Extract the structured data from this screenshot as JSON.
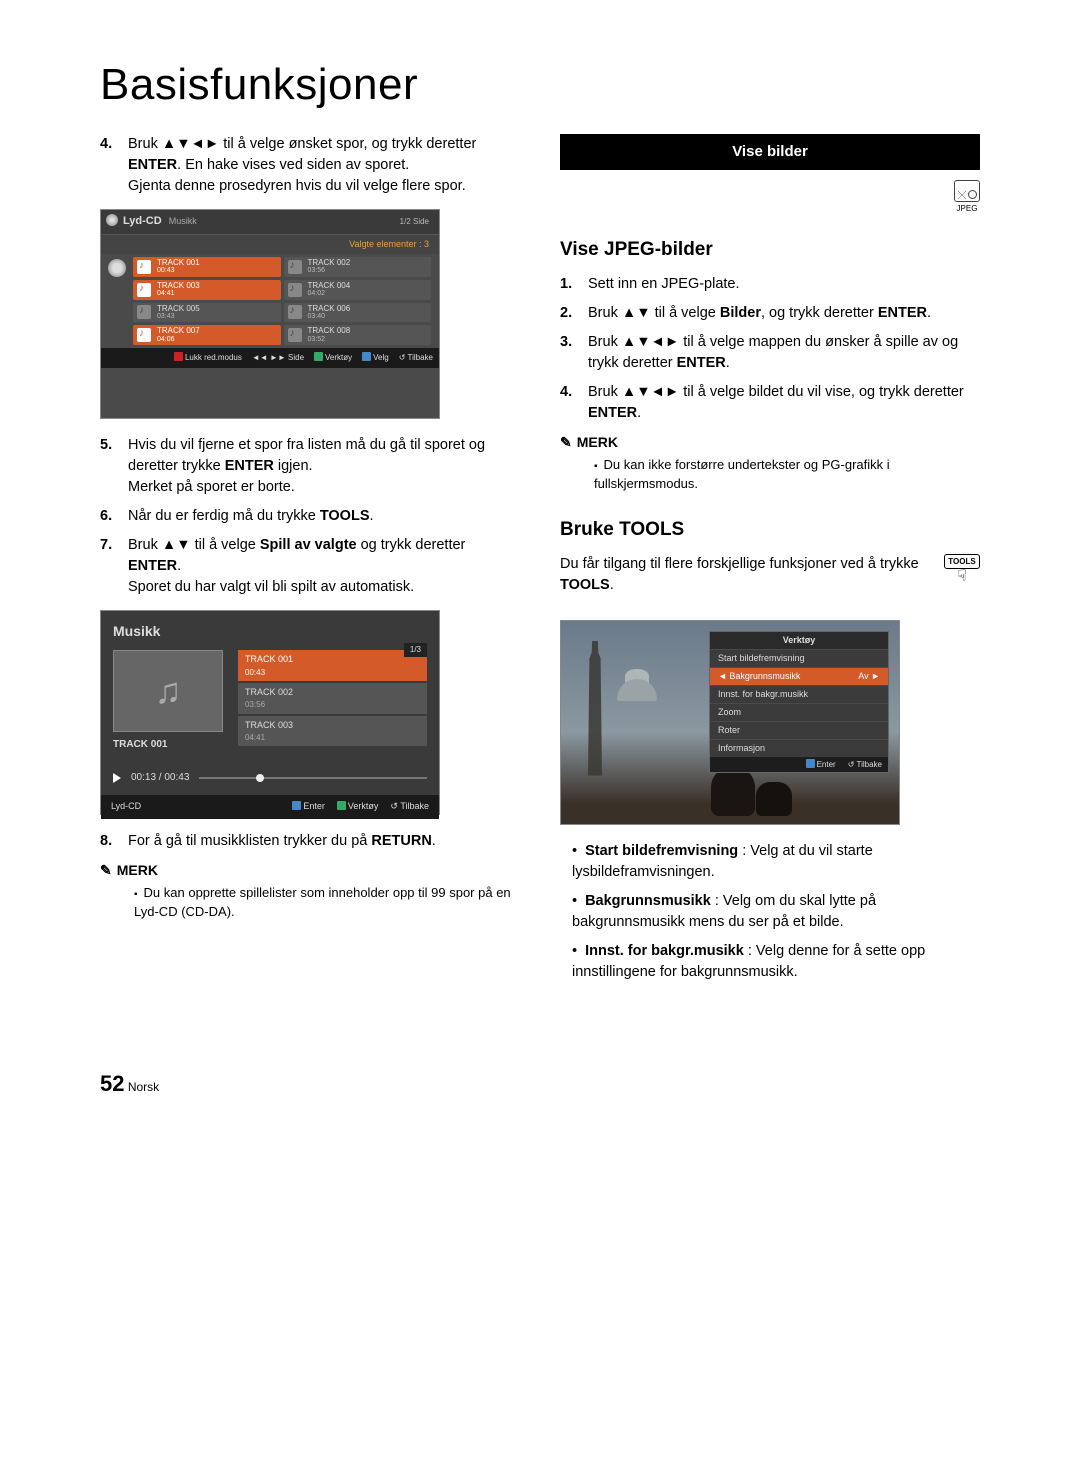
{
  "page": {
    "title": "Basisfunksjoner",
    "page_number": "52",
    "page_lang": "Norsk"
  },
  "left": {
    "step4_a": "Bruk ",
    "step4_arrows": "▲▼◄►",
    "step4_b": " til å velge ønsket spor, og trykk deretter ",
    "step4_enter": "ENTER",
    "step4_c": ". En hake vises ved siden av sporet.",
    "step4_d": "Gjenta denne prosedyren hvis du vil velge flere spor.",
    "step5_a": "Hvis du vil fjerne et spor fra listen må du gå til sporet og deretter trykke ",
    "step5_b": " igjen.",
    "step5_c": "Merket på sporet er borte.",
    "step6_a": "Når du er ferdig må du trykke ",
    "step6_tools": "TOOLS",
    "step7_a": "Bruk ",
    "step7_arrows": "▲▼",
    "step7_b": " til å velge ",
    "step7_bold": "Spill av valgte",
    "step7_c": " og trykk deretter ",
    "step7_d": ".",
    "step7_e": "Sporet du har valgt vil bli spilt av automatisk.",
    "step8_a": "For å gå til musikklisten trykker du på ",
    "step8_return": "RETURN",
    "step8_b": ".",
    "merk_label": "MERK",
    "merk_note": "Du kan opprette spillelister som inneholder opp til 99 spor på en Lyd-CD (CD-DA).",
    "ss1": {
      "title": "Lyd-CD",
      "subtitle": "Musikk",
      "right_hdr": "1/2 Side",
      "selected": "Valgte elementer : 3",
      "tracks": [
        {
          "n": "TRACK 001",
          "t": "00:43",
          "sel": true
        },
        {
          "n": "TRACK 002",
          "t": "03:56",
          "sel": false
        },
        {
          "n": "TRACK 003",
          "t": "04:41",
          "sel": true
        },
        {
          "n": "TRACK 004",
          "t": "04:02",
          "sel": false
        },
        {
          "n": "TRACK 005",
          "t": "03:43",
          "sel": false
        },
        {
          "n": "TRACK 006",
          "t": "03:40",
          "sel": false
        },
        {
          "n": "TRACK 007",
          "t": "04:06",
          "sel": true
        },
        {
          "n": "TRACK 008",
          "t": "03:52",
          "sel": false
        }
      ],
      "ftr": {
        "close": "Lukk red.modus",
        "page": "Side",
        "tools": "Verktøy",
        "select": "Velg",
        "back": "Tilbake"
      }
    },
    "ss2": {
      "title": "Musikk",
      "page": "1/3",
      "now": "TRACK 001",
      "time": "00:13 / 00:43",
      "items": [
        {
          "n": "TRACK 001",
          "t": "00:43",
          "act": true
        },
        {
          "n": "TRACK 002",
          "t": "03:56",
          "act": false
        },
        {
          "n": "TRACK 003",
          "t": "04:41",
          "act": false
        }
      ],
      "ftr_source": "Lyd-CD",
      "ftr": {
        "enter": "Enter",
        "tools": "Verktøy",
        "back": "Tilbake"
      }
    }
  },
  "right": {
    "section_bar": "Vise bilder",
    "jpeg_label": "JPEG",
    "h_jpeg": "Vise JPEG-bilder",
    "j1": "Sett inn en JPEG-plate.",
    "j2_a": "Bruk ",
    "j2_arrows": "▲▼",
    "j2_b": " til å velge ",
    "j2_bold": "Bilder",
    "j2_c": ", og trykk deretter ",
    "j2_enter": "ENTER",
    "j2_d": ".",
    "j3_a": "Bruk ",
    "j3_arrows": "▲▼◄►",
    "j3_b": " til å velge mappen du ønsker å spille av og trykk deretter ",
    "j3_enter": "ENTER",
    "j3_c": ".",
    "j4_a": "Bruk ",
    "j4_arrows": "▲▼◄►",
    "j4_b": " til å velge bildet du vil vise, og trykk deretter ",
    "j4_enter": "ENTER",
    "j4_c": ".",
    "merk_label": "MERK",
    "merk_note": "Du kan ikke forstørre undertekster og PG-grafikk i fullskjermsmodus.",
    "h_tools": "Bruke TOOLS",
    "tools_txt_a": "Du får tilgang til flere forskjellige funksjoner ved å trykke ",
    "tools_txt_b": "TOOLS",
    "tools_txt_c": ".",
    "tools_badge": "TOOLS",
    "ss3": {
      "menu_title": "Verktøy",
      "items": [
        {
          "l": "Start bildefremvisning",
          "r": ""
        },
        {
          "l": "Bakgrunnsmusikk",
          "r": "Av",
          "sel": true
        },
        {
          "l": "Innst. for bakgr.musikk",
          "r": ""
        },
        {
          "l": "Zoom",
          "r": ""
        },
        {
          "l": "Roter",
          "r": ""
        },
        {
          "l": "Informasjon",
          "r": ""
        }
      ],
      "ftr": {
        "enter": "Enter",
        "back": "Tilbake"
      }
    },
    "b1_bold": "Start bildefremvisning",
    "b1": " : Velg at du vil starte lysbildeframvisningen.",
    "b2_bold": "Bakgrunnsmusikk",
    "b2": " : Velg om du skal lytte på bakgrunnsmusikk mens du ser på et bilde.",
    "b3_bold": "Innst. for bakgr.musikk",
    "b3": " : Velg denne for å sette opp innstillingene for bakgrunnsmusikk."
  }
}
